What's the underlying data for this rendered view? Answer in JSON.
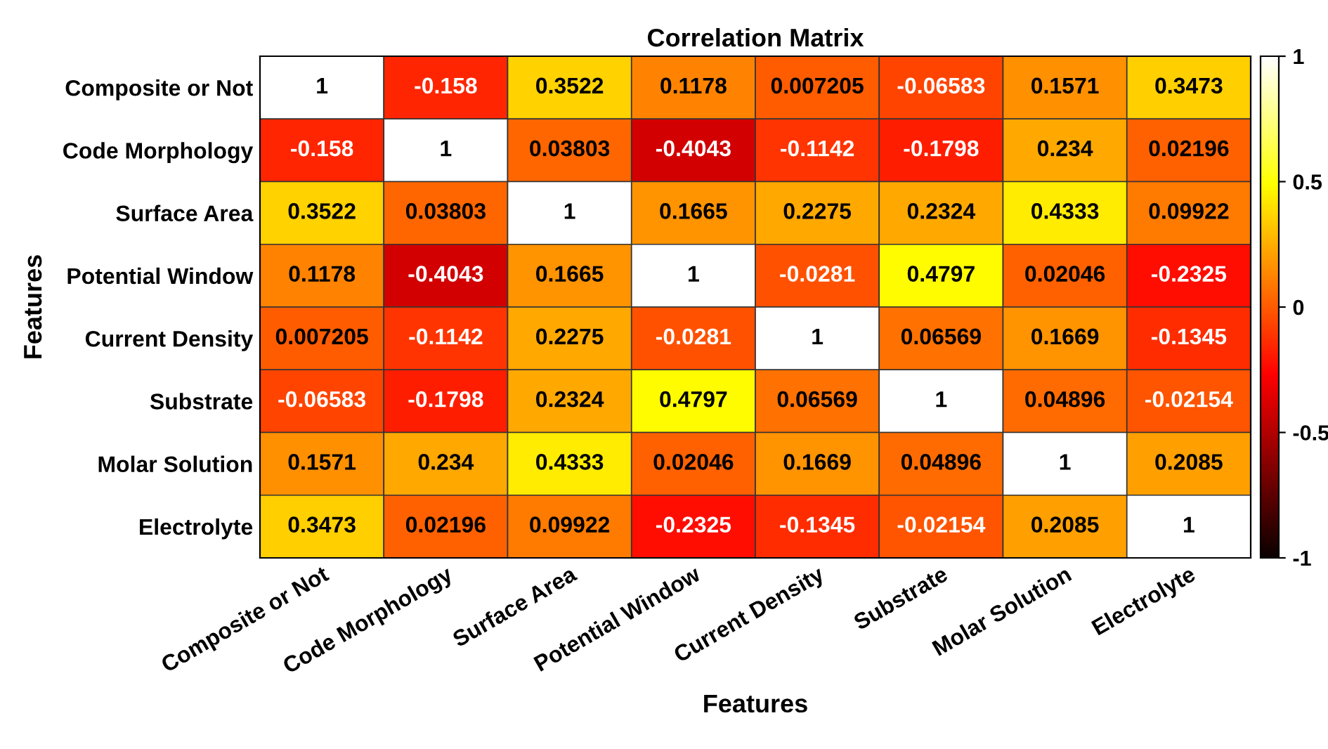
{
  "chart_data": {
    "type": "heatmap",
    "title": "Correlation Matrix",
    "xlabel": "Features",
    "ylabel": "Features",
    "categories": [
      "Composite or Not",
      "Code Morphology",
      "Surface Area",
      "Potential Window",
      "Current Density",
      "Substrate",
      "Molar Solution",
      "Electrolyte"
    ],
    "y_categories": [
      "Composite or Not",
      "Code Morphology",
      "Surface Area",
      "Potential Window",
      "Current Density",
      "Substrate",
      "Molar Solution",
      "Electrolyte"
    ],
    "cells": [
      [
        1,
        -0.158,
        0.3522,
        0.1178,
        0.007205,
        -0.06583,
        0.1571,
        0.3473
      ],
      [
        -0.158,
        1,
        0.03803,
        -0.4043,
        -0.1142,
        -0.1798,
        0.234,
        0.02196
      ],
      [
        0.3522,
        0.03803,
        1,
        0.1665,
        0.2275,
        0.2324,
        0.4333,
        0.09922
      ],
      [
        0.1178,
        -0.4043,
        0.1665,
        1,
        -0.0281,
        0.4797,
        0.02046,
        -0.2325
      ],
      [
        0.007205,
        -0.1142,
        0.2275,
        -0.0281,
        1,
        0.06569,
        0.1669,
        -0.1345
      ],
      [
        -0.06583,
        -0.1798,
        0.2324,
        0.4797,
        0.06569,
        1,
        0.04896,
        -0.02154
      ],
      [
        0.1571,
        0.234,
        0.4333,
        0.02046,
        0.1669,
        0.04896,
        1,
        0.2085
      ],
      [
        0.3473,
        0.02196,
        0.09922,
        -0.2325,
        -0.1345,
        -0.02154,
        0.2085,
        1
      ]
    ],
    "clim": [
      -1,
      1
    ],
    "cticks": [
      -1,
      -0.5,
      0,
      0.5,
      1
    ],
    "data_labels": true
  }
}
